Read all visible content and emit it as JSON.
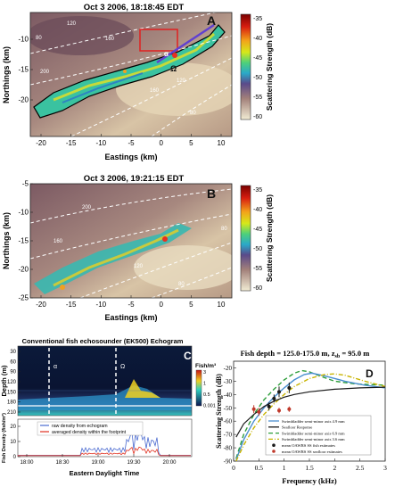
{
  "panelA": {
    "title": "Oct 3 2006, 18:18:45 EDT",
    "letter": "A",
    "ylabel": "Northings (km)",
    "xlabel": "Eastings (km)",
    "xticks": [
      "-20",
      "-15",
      "-10",
      "-5",
      "0",
      "5",
      "10"
    ],
    "yticks": [
      "-10",
      "-15",
      "-20"
    ],
    "marker_alpha": "α",
    "marker_omega": "Ω",
    "contours": [
      "200",
      "160",
      "120",
      "80",
      "160",
      "120",
      "80"
    ],
    "colorbar": {
      "label": "Scattering Strength (dB)",
      "ticks": [
        "-35",
        "-40",
        "-45",
        "-50",
        "-55",
        "-60"
      ]
    }
  },
  "panelB": {
    "title": "Oct 3 2006, 19:21:15 EDT",
    "letter": "B",
    "ylabel": "Northings (km)",
    "xlabel": "Eastings (km)",
    "xticks": [
      "-20",
      "-15",
      "-10",
      "-5",
      "0",
      "5",
      "10"
    ],
    "yticks": [
      "-5",
      "-10",
      "-15",
      "-20",
      "-25"
    ],
    "contours": [
      "200",
      "160",
      "120",
      "80",
      "80"
    ],
    "colorbar": {
      "label": "Scattering Strength (dB)",
      "ticks": [
        "-35",
        "-40",
        "-45",
        "-50",
        "-55",
        "-60"
      ]
    }
  },
  "panelC": {
    "title": "Conventional fish echosounder (EK500) Echogram",
    "letter": "C",
    "ylabel_top": "Depth (m)",
    "yticks_top": [
      "30",
      "60",
      "90",
      "120",
      "150",
      "180",
      "210"
    ],
    "marker_alpha": "α",
    "marker_omega": "Ω",
    "colorbar": {
      "unit": "Fish/m³",
      "ticks": [
        "3",
        "1",
        "0.5",
        "0.001"
      ]
    },
    "ylabel_bottom": "Fish Density (fish/m²)",
    "yticks_bottom": [
      "20",
      "10",
      "0"
    ],
    "xticks": [
      "18:00",
      "18:30",
      "19:00",
      "19:30",
      "20:00"
    ],
    "xlabel": "Eastern Daylight Time",
    "legend": [
      "raw density from echogram",
      "averaged density within the footprint"
    ]
  },
  "chart_data": {
    "type": "line",
    "title": "Fish depth = 125.0-175.0 m, z",
    "title_sub": "sb",
    "title_tail": " = 95.0 m",
    "letter": "D",
    "xlabel": "Frequency (kHz)",
    "ylabel": "Scattering Strength (dB)",
    "xlim": [
      0,
      3
    ],
    "ylim": [
      -90,
      -15
    ],
    "xticks": [
      "0",
      "0.5",
      "1",
      "1.5",
      "2",
      "2.5",
      "3"
    ],
    "yticks": [
      "-20",
      "-30",
      "-40",
      "-50",
      "-60",
      "-70",
      "-80",
      "-90"
    ],
    "legend": [
      "Swimbladder semi-minor axis 4.9 mm",
      "Seafloor Response",
      "Swimbladder semi-minor axis 6.9 mm",
      "Swimbladder semi-minor axis 3.6 mm",
      "mean OAWRS SS fish estimates",
      "mean OAWRS SS seafloor estimates"
    ],
    "colors": {
      "s49": "#4a8fd0",
      "seafloor": "#1a1a1a",
      "s69": "#2e9e3a",
      "s36": "#c8b400",
      "fish": "#1a1a1a",
      "seafloor_pts": "#c0392b"
    },
    "series": [
      {
        "key": "s69",
        "x": [
          0.05,
          0.2,
          0.4,
          0.6,
          0.8,
          1.0,
          1.2,
          1.35,
          1.5,
          1.7,
          2.0,
          2.4,
          3.0
        ],
        "y": [
          -88,
          -70,
          -55,
          -44,
          -36,
          -29,
          -24,
          -22,
          -23,
          -26,
          -30,
          -32,
          -33
        ]
      },
      {
        "key": "s49",
        "x": [
          0.05,
          0.2,
          0.4,
          0.6,
          0.8,
          1.0,
          1.2,
          1.4,
          1.55,
          1.8,
          2.2,
          2.6,
          3.0
        ],
        "y": [
          -89,
          -74,
          -60,
          -50,
          -42,
          -35,
          -29,
          -25,
          -24,
          -26,
          -30,
          -33,
          -35
        ]
      },
      {
        "key": "s36",
        "x": [
          0.05,
          0.2,
          0.4,
          0.6,
          0.8,
          1.0,
          1.2,
          1.5,
          1.8,
          2.0,
          2.2,
          2.6,
          3.0
        ],
        "y": [
          -90,
          -78,
          -65,
          -55,
          -47,
          -40,
          -34,
          -28,
          -25,
          -24.5,
          -25.5,
          -30,
          -34
        ]
      },
      {
        "key": "seafloor",
        "x": [
          0.05,
          0.2,
          0.4,
          0.6,
          0.8,
          1.0,
          1.2,
          1.5,
          2.0,
          2.5,
          3.0
        ],
        "y": [
          -72,
          -62,
          -55,
          -49,
          -45,
          -42,
          -40,
          -38,
          -36,
          -35,
          -34.5
        ]
      }
    ],
    "fish_points": [
      {
        "x": 0.7,
        "y": -49,
        "err": 3
      },
      {
        "x": 0.8,
        "y": -43,
        "err": 3
      },
      {
        "x": 0.9,
        "y": -38,
        "err": 4
      },
      {
        "x": 1.1,
        "y": -35,
        "err": 4
      }
    ],
    "seafloor_points": [
      {
        "x": 0.4,
        "y": -51,
        "err": 3
      },
      {
        "x": 0.5,
        "y": -53,
        "err": 3
      },
      {
        "x": 0.9,
        "y": -52,
        "err": 2
      },
      {
        "x": 1.1,
        "y": -51,
        "err": 2
      }
    ]
  }
}
